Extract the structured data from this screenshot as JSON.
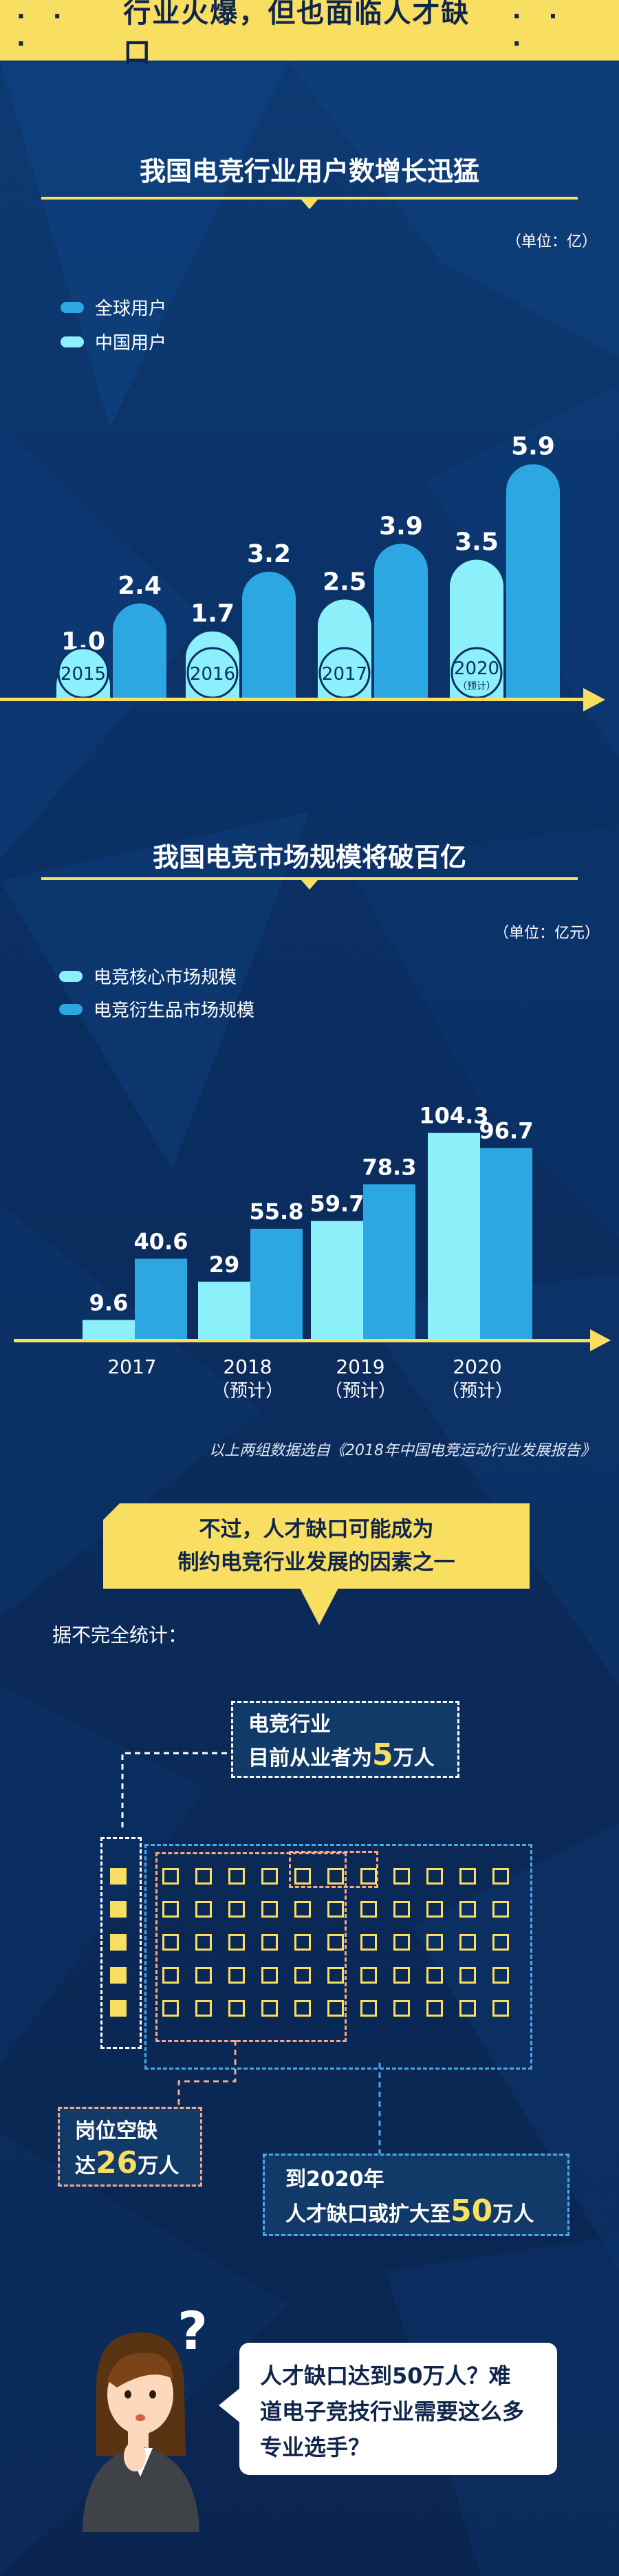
{
  "header": {
    "title": "行业火爆，但也面临人才缺口",
    "dots_left": "· · ·",
    "dots_right": "· · ·"
  },
  "section1": {
    "title": "我国电竞行业用户数增长迅猛",
    "unit": "（单位：亿）"
  },
  "section2": {
    "title": "我国电竞市场规模将破百亿",
    "unit": "（单位：亿元）",
    "source": "以上两组数据选自《2018年中国电竞运动行业发展报告》"
  },
  "colors": {
    "yellow": "#f9df61",
    "navy": "#0b2f63",
    "light_cyan": "#8cf0fb",
    "mid_blue": "#2ca7e2"
  },
  "chart_data": [
    {
      "type": "bar",
      "title": "我国电竞行业用户数增长迅猛",
      "unit": "（单位：亿）",
      "categories": [
        "2015",
        "2016",
        "2017",
        "2020"
      ],
      "category_note": [
        "",
        "",
        "",
        "（预计）"
      ],
      "series": [
        {
          "name": "中国用户",
          "values": [
            1.0,
            1.7,
            2.5,
            3.5
          ],
          "color": "#8cf0fb"
        },
        {
          "name": "全球用户",
          "values": [
            2.4,
            3.2,
            3.9,
            5.9
          ],
          "color": "#2ca7e2"
        }
      ],
      "legend_order": [
        "全球用户",
        "中国用户"
      ],
      "legend_position": "top-left",
      "ylim": [
        0,
        6.5
      ]
    },
    {
      "type": "bar",
      "title": "我国电竞市场规模将破百亿",
      "unit": "（单位：亿元）",
      "categories": [
        "2017",
        "2018",
        "2019",
        "2020"
      ],
      "category_note": [
        "",
        "（预计）",
        "（预计）",
        "（预计）"
      ],
      "series": [
        {
          "name": "电竞核心市场规模",
          "values": [
            9.6,
            29,
            59.7,
            104.3
          ],
          "color": "#8cf0fb"
        },
        {
          "name": "电竞衍生品市场规模",
          "values": [
            40.6,
            55.8,
            78.3,
            96.7
          ],
          "color": "#2ca7e2"
        }
      ],
      "legend_position": "top-left",
      "ylim": [
        0,
        115
      ]
    }
  ],
  "infographic": {
    "quote_line1": "不过，人才缺口可能成为",
    "quote_line2": "制约电竞行业发展的因素之一",
    "stat_label": "据不完全统计：",
    "current": {
      "line1": "电竞行业",
      "line2_pre": "目前从业者为",
      "number": "5",
      "unit": "万人"
    },
    "vacancy": {
      "line1": "岗位空缺",
      "pre": "达",
      "number": "26",
      "unit": "万人"
    },
    "future": {
      "line1": "到2020年",
      "pre": "人才缺口或扩大至",
      "number": "50",
      "unit": "万人"
    }
  },
  "speech": {
    "line1": "人才缺口达到50万人？难",
    "line2": "道电子竞技行业需要这么多",
    "line3": "专业选手？"
  },
  "character": {
    "glyph": "?"
  }
}
